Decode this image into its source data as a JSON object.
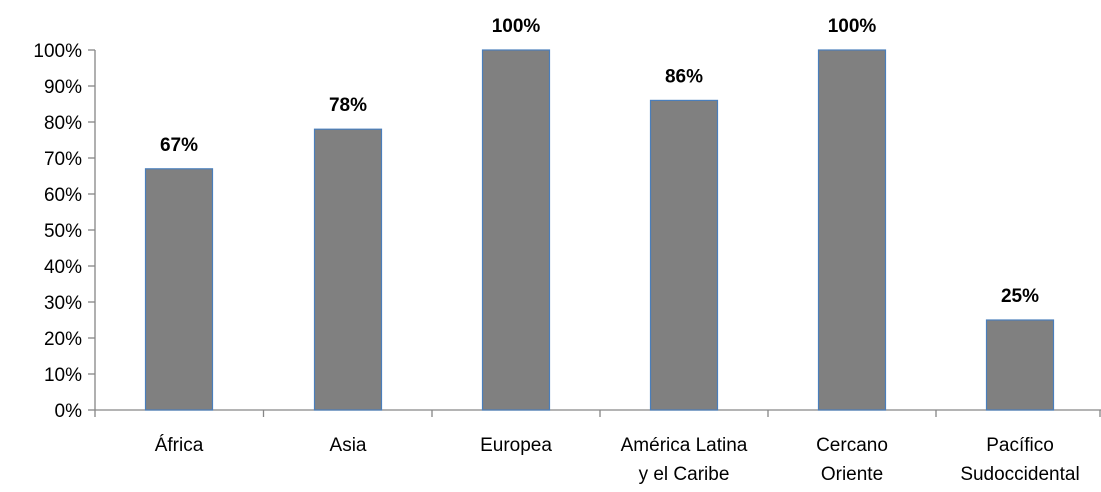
{
  "chart_data": {
    "type": "bar",
    "title": "",
    "xlabel": "",
    "ylabel": "",
    "categories": [
      [
        "África"
      ],
      [
        "Asia"
      ],
      [
        "Europea"
      ],
      [
        "América Latina",
        "y el Caribe"
      ],
      [
        "Cercano",
        "Oriente"
      ],
      [
        "Pacífico",
        "Sudoccidental"
      ]
    ],
    "values": [
      67,
      78,
      100,
      86,
      100,
      25
    ],
    "data_labels": [
      "67%",
      "78%",
      "100%",
      "86%",
      "100%",
      "25%"
    ],
    "ylim": [
      0,
      100
    ],
    "y_ticks": [
      0,
      10,
      20,
      30,
      40,
      50,
      60,
      70,
      80,
      90,
      100
    ],
    "y_tick_labels": [
      "0%",
      "10%",
      "20%",
      "30%",
      "40%",
      "50%",
      "60%",
      "70%",
      "80%",
      "90%",
      "100%"
    ],
    "grid": false,
    "legend": "none",
    "colors": {
      "bar_fill": "#808080",
      "bar_stroke": "#4a7ebb",
      "axis": "#868686"
    }
  }
}
